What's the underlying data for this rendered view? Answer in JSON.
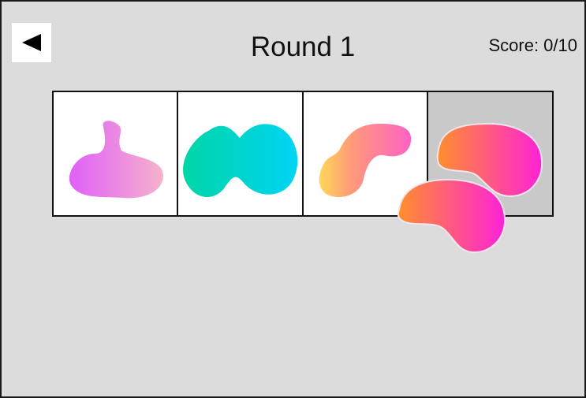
{
  "header": {
    "title": "Round 1",
    "score": "Score: 0/10",
    "back_icon": "back-arrow-icon"
  },
  "tray": {
    "slots": [
      {
        "shape": "blob-clover",
        "colors": [
          "#e060f8",
          "#f6b2cc"
        ]
      },
      {
        "shape": "blob-peanut",
        "colors": [
          "#00d5a6",
          "#00d4f5"
        ]
      },
      {
        "shape": "blob-hook",
        "colors": [
          "#ffd858",
          "#ff62c4"
        ]
      },
      {
        "shape": "blob-kidney-target",
        "colors": [
          "#ff8f2d",
          "#ff22d8"
        ],
        "placed": false
      }
    ]
  },
  "dragged_piece": {
    "shape": "blob-kidney",
    "colors": [
      "#ff8f2d",
      "#ff22d8"
    ]
  }
}
